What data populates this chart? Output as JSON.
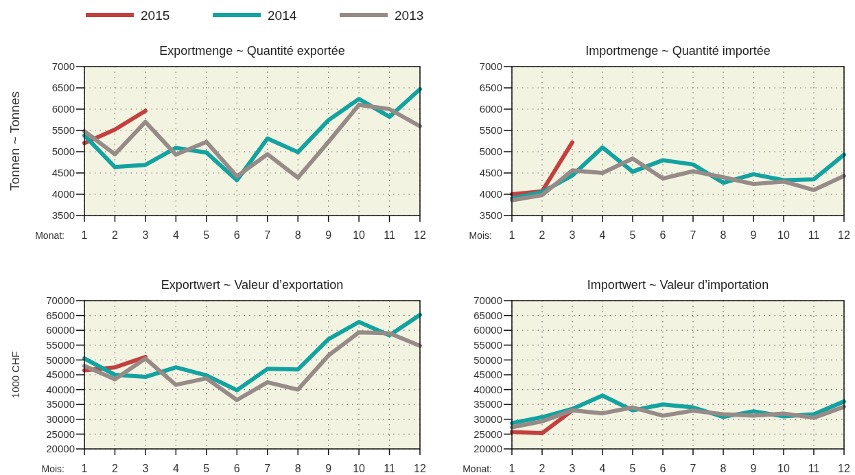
{
  "chart_data": [
    {
      "type": "line",
      "title": "Exportmenge ~ Quantité exportée",
      "ylabel": "Tonnen ~ Tonnes",
      "xlabel": "Monat:",
      "x": [
        1,
        2,
        3,
        4,
        5,
        6,
        7,
        8,
        9,
        10,
        11,
        12
      ],
      "xlim": [
        1,
        12
      ],
      "xticks": [
        1,
        2,
        3,
        4,
        5,
        6,
        7,
        8,
        9,
        10,
        11,
        12
      ],
      "ylim": [
        3500,
        7000
      ],
      "yticks": [
        3500,
        4000,
        4500,
        5000,
        5500,
        6000,
        6500,
        7000
      ],
      "grid": true,
      "legend": "top left",
      "marker": "none",
      "line_style": "solid",
      "series": [
        {
          "name": "2015",
          "color": "#c4403f",
          "values": [
            5200,
            5520,
            5960,
            null,
            null,
            null,
            null,
            null,
            null,
            null,
            null,
            null
          ]
        },
        {
          "name": "2014",
          "color": "#12a3a0",
          "values": [
            5380,
            4640,
            4690,
            5090,
            4980,
            4330,
            5310,
            4990,
            5740,
            6240,
            5820,
            6470
          ]
        },
        {
          "name": "2013",
          "color": "#968b87",
          "values": [
            5480,
            4940,
            5700,
            4930,
            5230,
            4420,
            4940,
            4390,
            5230,
            6100,
            6000,
            5600
          ]
        }
      ]
    },
    {
      "type": "line",
      "title": "Importmenge ~ Quantité importée",
      "xlabel": "Mois:",
      "x": [
        1,
        2,
        3,
        4,
        5,
        6,
        7,
        8,
        9,
        10,
        11,
        12
      ],
      "xlim": [
        1,
        12
      ],
      "xticks": [
        1,
        2,
        3,
        4,
        5,
        6,
        7,
        8,
        9,
        10,
        11,
        12
      ],
      "ylim": [
        3500,
        7000
      ],
      "yticks": [
        3500,
        4000,
        4500,
        5000,
        5500,
        6000,
        6500,
        7000
      ],
      "grid": true,
      "marker": "none",
      "line_style": "solid",
      "series": [
        {
          "color": "#c4403f",
          "values": [
            4000,
            4070,
            5220,
            null,
            null,
            null,
            null,
            null,
            null,
            null,
            null,
            null
          ]
        },
        {
          "color": "#12a3a0",
          "values": [
            3900,
            4050,
            4440,
            5100,
            4530,
            4800,
            4700,
            4270,
            4470,
            4330,
            4350,
            4930
          ]
        },
        {
          "color": "#968b87",
          "values": [
            3860,
            3980,
            4560,
            4500,
            4840,
            4370,
            4540,
            4400,
            4240,
            4300,
            4100,
            4430
          ]
        }
      ]
    },
    {
      "type": "line",
      "title": "Exportwert ~ Valeur d’exportation",
      "ylabel": "1000 CHF",
      "xlabel": "Mois:",
      "x": [
        1,
        2,
        3,
        4,
        5,
        6,
        7,
        8,
        9,
        10,
        11,
        12
      ],
      "xlim": [
        1,
        12
      ],
      "xticks": [
        1,
        2,
        3,
        4,
        5,
        6,
        7,
        8,
        9,
        10,
        11,
        12
      ],
      "ylim": [
        20000,
        70000
      ],
      "yticks": [
        20000,
        25000,
        30000,
        35000,
        40000,
        45000,
        50000,
        55000,
        60000,
        65000,
        70000
      ],
      "grid": true,
      "marker": "none",
      "line_style": "solid",
      "series": [
        {
          "color": "#c4403f",
          "values": [
            46500,
            47500,
            51000,
            null,
            null,
            null,
            null,
            null,
            null,
            null,
            null,
            null
          ]
        },
        {
          "color": "#12a3a0",
          "values": [
            50500,
            45000,
            44300,
            47500,
            44800,
            39800,
            47000,
            46800,
            57000,
            62800,
            58300,
            65200
          ]
        },
        {
          "color": "#968b87",
          "values": [
            48000,
            43500,
            50500,
            41600,
            43800,
            36500,
            42500,
            40000,
            51500,
            59300,
            59000,
            54800
          ]
        }
      ]
    },
    {
      "type": "line",
      "title": "Importwert ~ Valeur d’importation",
      "xlabel": "Monat:",
      "x": [
        1,
        2,
        3,
        4,
        5,
        6,
        7,
        8,
        9,
        10,
        11,
        12
      ],
      "xlim": [
        1,
        12
      ],
      "xticks": [
        1,
        2,
        3,
        4,
        5,
        6,
        7,
        8,
        9,
        10,
        11,
        12
      ],
      "ylim": [
        20000,
        70000
      ],
      "yticks": [
        20000,
        25000,
        30000,
        35000,
        40000,
        45000,
        50000,
        55000,
        60000,
        65000,
        70000
      ],
      "grid": true,
      "marker": "none",
      "line_style": "solid",
      "series": [
        {
          "color": "#c4403f",
          "values": [
            25700,
            25300,
            33000,
            null,
            null,
            null,
            null,
            null,
            null,
            null,
            null,
            null
          ]
        },
        {
          "color": "#12a3a0",
          "values": [
            28700,
            30700,
            33500,
            38000,
            33000,
            35000,
            34000,
            30800,
            32700,
            31000,
            31700,
            36000
          ]
        },
        {
          "color": "#968b87",
          "values": [
            27300,
            29300,
            33000,
            32000,
            34000,
            31200,
            32900,
            31700,
            31200,
            31900,
            30500,
            34200
          ]
        }
      ]
    }
  ]
}
